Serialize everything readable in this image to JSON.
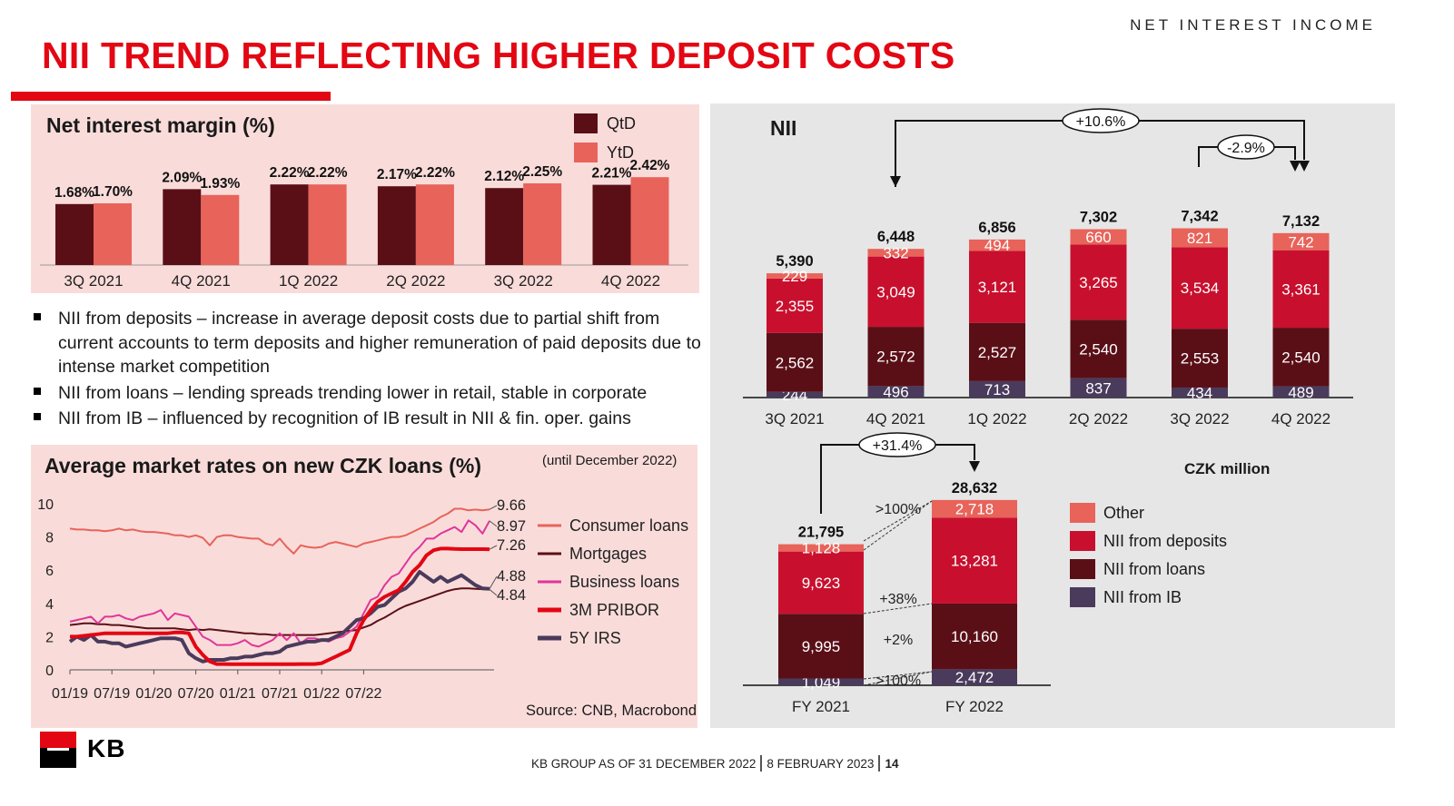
{
  "header": {
    "section_label": "NET INTEREST INCOME",
    "title": "NII TREND REFLECTING HIGHER DEPOSIT COSTS"
  },
  "colors": {
    "brand_red": "#e30613",
    "qtd": "#5a0f17",
    "ytd": "#e8635a",
    "other": "#e8635a",
    "deposits": "#c8102e",
    "loans": "#5a0f17",
    "ib": "#4a3b5c",
    "pink_panel": "#f9dcda",
    "grey_panel": "#e6e6e6"
  },
  "nim_panel": {
    "title": "Net interest margin (%)",
    "legend": [
      "QtD",
      "YtD"
    ]
  },
  "bullets": [
    "NII from deposits – increase in average deposit costs due to partial shift from current accounts to term deposits and higher remuneration of paid deposits due to intense market competition",
    "NII from loans – lending spreads trending lower in retail, stable in corporate",
    "NII from IB – influenced by recognition of IB result in NII & fin. oper. gains"
  ],
  "rates_panel": {
    "title": "Average market rates on new CZK loans (%)",
    "note": "(until December 2022)",
    "source": "Source: CNB, Macrobond"
  },
  "nii_panel": {
    "title": "NII",
    "unit": "CZK million",
    "legend": [
      "Other",
      "NII from deposits",
      "NII from loans",
      "NII from IB"
    ],
    "callouts": [
      "+10.6%",
      "-2.9%",
      "+31.4%"
    ],
    "fy_changes": [
      ">100%",
      "+38%",
      "+2%",
      ">100%"
    ]
  },
  "footer": {
    "logo_text": "KB",
    "group": "KB GROUP AS OF 31 DECEMBER 2022",
    "date": "8 FEBRUARY 2023",
    "page": "14"
  },
  "chart_data": [
    {
      "id": "nim",
      "type": "bar",
      "categories": [
        "3Q 2021",
        "4Q 2021",
        "1Q 2022",
        "2Q 2022",
        "3Q 2022",
        "4Q 2022"
      ],
      "series": [
        {
          "name": "QtD",
          "values": [
            1.68,
            2.09,
            2.22,
            2.17,
            2.12,
            2.21
          ],
          "labels": [
            "1.68%",
            "2.09%",
            "2.22%",
            "2.17%",
            "2.12%",
            "2.21%"
          ]
        },
        {
          "name": "YtD",
          "values": [
            1.7,
            1.93,
            2.22,
            2.22,
            2.25,
            2.42
          ],
          "labels": [
            "1.70%",
            "1.93%",
            "2.22%",
            "2.22%",
            "2.25%",
            "2.42%"
          ]
        }
      ],
      "ylim": [
        0,
        2.6
      ]
    },
    {
      "id": "rates",
      "type": "line",
      "x_ticks": [
        "01/19",
        "07/19",
        "01/20",
        "07/20",
        "01/21",
        "07/21",
        "01/22",
        "07/22"
      ],
      "y_ticks": [
        "0",
        "2",
        "4",
        "6",
        "8",
        "10"
      ],
      "ylim": [
        0,
        10
      ],
      "series": [
        {
          "name": "Consumer loans",
          "color": "#e8635a",
          "end_label": "9.66",
          "values": [
            8.5,
            8.45,
            8.45,
            8.4,
            8.4,
            8.35,
            8.4,
            8.5,
            8.4,
            8.45,
            8.35,
            8.3,
            8.3,
            8.25,
            8.2,
            8.1,
            8.1,
            8.0,
            8.1,
            7.95,
            7.5,
            8.0,
            8.1,
            8.1,
            8.0,
            7.95,
            7.9,
            7.9,
            7.6,
            7.5,
            7.9,
            7.4,
            7.0,
            7.5,
            7.4,
            7.35,
            7.4,
            7.6,
            7.7,
            7.6,
            7.5,
            7.4,
            7.6,
            7.7,
            7.8,
            7.9,
            8.0,
            8.0,
            8.1,
            8.3,
            8.5,
            8.7,
            8.9,
            9.2,
            9.4,
            9.7,
            9.7,
            9.6,
            9.65,
            9.6,
            9.66
          ]
        },
        {
          "name": "Mortgages",
          "color": "#5a0f17",
          "end_label": "4.84",
          "values": [
            2.7,
            2.75,
            2.8,
            2.8,
            2.75,
            2.75,
            2.7,
            2.7,
            2.65,
            2.6,
            2.55,
            2.5,
            2.5,
            2.5,
            2.5,
            2.5,
            2.45,
            2.4,
            2.45,
            2.4,
            2.45,
            2.4,
            2.35,
            2.3,
            2.25,
            2.2,
            2.2,
            2.15,
            2.15,
            2.1,
            2.1,
            2.1,
            2.1,
            2.1,
            2.1,
            2.1,
            2.15,
            2.2,
            2.25,
            2.3,
            2.35,
            2.4,
            2.55,
            2.7,
            2.95,
            3.15,
            3.4,
            3.65,
            3.85,
            4.0,
            4.15,
            4.3,
            4.45,
            4.6,
            4.75,
            4.85,
            4.9,
            4.9,
            4.88,
            4.86,
            4.84
          ]
        },
        {
          "name": "Business loans",
          "color": "#e0359a",
          "end_label": "8.97",
          "values": [
            2.9,
            3.0,
            3.1,
            3.2,
            2.8,
            3.2,
            3.2,
            3.3,
            3.1,
            3.0,
            3.2,
            3.3,
            3.4,
            3.6,
            3.0,
            3.4,
            3.3,
            3.2,
            2.6,
            2.0,
            1.8,
            1.5,
            1.5,
            1.5,
            1.6,
            1.8,
            1.5,
            1.4,
            1.6,
            1.8,
            2.2,
            1.8,
            2.2,
            1.6,
            1.9,
            1.9,
            1.8,
            1.7,
            1.9,
            2.0,
            2.3,
            2.6,
            3.4,
            4.2,
            4.4,
            5.1,
            5.6,
            5.8,
            6.4,
            7.0,
            7.4,
            7.9,
            7.9,
            8.2,
            8.4,
            8.6,
            8.3,
            9.0,
            8.7,
            8.2,
            8.97
          ]
        },
        {
          "name": "3M PRIBOR",
          "color": "#e30613",
          "end_label": "7.26",
          "values": [
            2.0,
            2.0,
            2.05,
            2.1,
            2.15,
            2.2,
            2.2,
            2.2,
            2.2,
            2.2,
            2.2,
            2.2,
            2.2,
            2.2,
            2.2,
            2.25,
            2.25,
            2.2,
            1.4,
            0.9,
            0.5,
            0.35,
            0.35,
            0.34,
            0.34,
            0.34,
            0.34,
            0.34,
            0.34,
            0.34,
            0.34,
            0.34,
            0.34,
            0.35,
            0.35,
            0.35,
            0.4,
            0.6,
            0.8,
            1.0,
            1.2,
            2.2,
            3.0,
            3.6,
            4.1,
            4.4,
            4.6,
            4.8,
            5.3,
            5.9,
            6.3,
            6.9,
            7.2,
            7.3,
            7.3,
            7.28,
            7.27,
            7.27,
            7.27,
            7.27,
            7.26
          ]
        },
        {
          "name": "5Y IRS",
          "color": "#4a3b5c",
          "end_label": "4.88",
          "values": [
            1.7,
            2.0,
            1.8,
            2.1,
            1.7,
            1.7,
            1.6,
            1.6,
            1.4,
            1.5,
            1.6,
            1.7,
            1.8,
            1.9,
            1.9,
            1.9,
            1.8,
            1.0,
            0.7,
            0.5,
            0.6,
            0.6,
            0.6,
            0.7,
            0.7,
            0.8,
            0.8,
            0.9,
            1.0,
            1.0,
            1.1,
            1.4,
            1.5,
            1.6,
            1.7,
            1.7,
            1.8,
            1.8,
            2.0,
            2.2,
            2.6,
            3.0,
            3.1,
            3.4,
            3.8,
            3.9,
            4.3,
            4.7,
            4.9,
            5.3,
            5.9,
            5.6,
            5.3,
            5.6,
            5.3,
            5.5,
            5.7,
            5.4,
            5.1,
            4.9,
            4.88
          ]
        }
      ]
    },
    {
      "id": "nii_quarterly",
      "type": "bar",
      "stacked": true,
      "categories": [
        "3Q 2021",
        "4Q 2021",
        "1Q 2022",
        "2Q 2022",
        "3Q 2022",
        "4Q 2022"
      ],
      "totals": [
        "5,390",
        "6,448",
        "6,856",
        "7,302",
        "7,342",
        "7,132"
      ],
      "total_values": [
        5390,
        6448,
        6856,
        7302,
        7342,
        7132
      ],
      "series": [
        {
          "name": "NII from IB",
          "values": [
            244,
            496,
            713,
            837,
            434,
            489
          ],
          "labels": [
            "244",
            "496",
            "713",
            "837",
            "434",
            "489"
          ]
        },
        {
          "name": "NII from loans",
          "values": [
            2562,
            2572,
            2527,
            2540,
            2553,
            2540
          ],
          "labels": [
            "2,562",
            "2,572",
            "2,527",
            "2,540",
            "2,553",
            "2,540"
          ]
        },
        {
          "name": "NII from deposits",
          "values": [
            2355,
            3049,
            3121,
            3265,
            3534,
            3361
          ],
          "labels": [
            "2,355",
            "3,049",
            "3,121",
            "3,265",
            "3,534",
            "3,361"
          ]
        },
        {
          "name": "Other",
          "values": [
            229,
            332,
            494,
            660,
            821,
            742
          ],
          "labels": [
            "229",
            "332",
            "494",
            "660",
            "821",
            "742"
          ]
        }
      ]
    },
    {
      "id": "nii_fy",
      "type": "bar",
      "stacked": true,
      "categories": [
        "FY 2021",
        "FY 2022"
      ],
      "totals": [
        "21,795",
        "28,632"
      ],
      "total_values": [
        21795,
        28632
      ],
      "series": [
        {
          "name": "NII from IB",
          "values": [
            1049,
            2472
          ],
          "labels": [
            "1,049",
            "2,472"
          ]
        },
        {
          "name": "NII from loans",
          "values": [
            9995,
            10160
          ],
          "labels": [
            "9,995",
            "10,160"
          ]
        },
        {
          "name": "NII from deposits",
          "values": [
            9623,
            13281
          ],
          "labels": [
            "9,623",
            "13,281"
          ]
        },
        {
          "name": "Other",
          "values": [
            1128,
            2718
          ],
          "labels": [
            "1,128",
            "2,718"
          ]
        }
      ]
    }
  ]
}
